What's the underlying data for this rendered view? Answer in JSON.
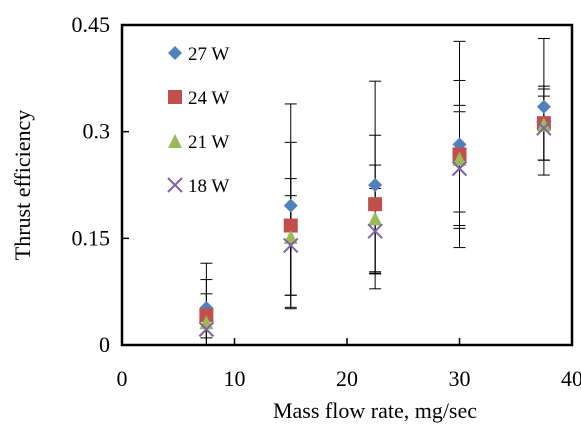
{
  "chart_data": {
    "type": "scatter",
    "xlabel": "Mass flow rate, mg/sec",
    "ylabel": "Thrust efficiency",
    "xlim": [
      0,
      40
    ],
    "ylim": [
      0,
      0.45
    ],
    "x_ticks": [
      0,
      10,
      20,
      30,
      40
    ],
    "y_ticks": [
      0,
      0.15,
      0.3,
      0.45
    ],
    "x_tick_labels": [
      "0",
      "10",
      "20",
      "30",
      "40"
    ],
    "y_tick_labels": [
      "0",
      "0.15",
      "0.3",
      "0.45"
    ],
    "grid": false,
    "legend_position": "top-left",
    "x": [
      7.5,
      15,
      22.5,
      30,
      37.5
    ],
    "series": [
      {
        "name": "27 W",
        "marker": "diamond",
        "color": "#4F81BD",
        "values": [
          0.052,
          0.196,
          0.225,
          0.282,
          0.335
        ],
        "error": [
          0.063,
          0.143,
          0.146,
          0.145,
          0.096
        ]
      },
      {
        "name": "24 W",
        "marker": "square",
        "color": "#C0504D",
        "values": [
          0.042,
          0.168,
          0.198,
          0.268,
          0.312
        ],
        "error": [
          0.05,
          0.117,
          0.097,
          0.104,
          0.052
        ]
      },
      {
        "name": "21 W",
        "marker": "triangle",
        "color": "#9BBB59",
        "values": [
          0.032,
          0.152,
          0.178,
          0.262,
          0.31
        ],
        "error": [
          0.04,
          0.082,
          0.075,
          0.075,
          0.05
        ]
      },
      {
        "name": "18 W",
        "marker": "x",
        "color": "#8064A2",
        "values": [
          0.022,
          0.14,
          0.16,
          0.248,
          0.305
        ],
        "error": [
          0.012,
          0.07,
          0.06,
          0.08,
          0.045
        ]
      }
    ]
  }
}
